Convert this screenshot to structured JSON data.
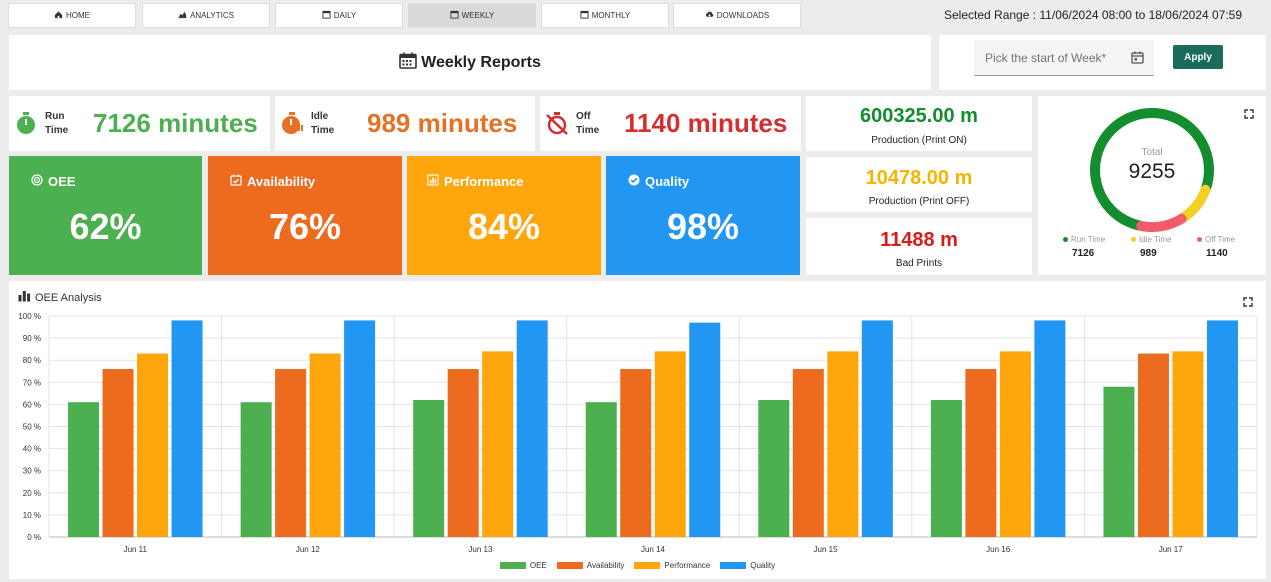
{
  "nav": {
    "items": [
      {
        "label": "HOME",
        "icon": "home-icon"
      },
      {
        "label": "ANALYTICS",
        "icon": "area-chart-icon"
      },
      {
        "label": "DAILY",
        "icon": "calendar-icon"
      },
      {
        "label": "WEEKLY",
        "icon": "calendar-icon",
        "active": true
      },
      {
        "label": "MONTHLY",
        "icon": "calendar-icon"
      },
      {
        "label": "DOWNLOADS",
        "icon": "cloud-download-icon"
      }
    ],
    "selected_range": "Selected Range : 11/06/2024 08:00 to 18/06/2024 07:59"
  },
  "header": {
    "title": "Weekly Reports",
    "picker_placeholder": "Pick the start of Week*",
    "apply_label": "Apply"
  },
  "times": {
    "run": {
      "label1": "Run",
      "label2": "Time",
      "value": "7126 minutes",
      "color": "#4caf50"
    },
    "idle": {
      "label1": "Idle",
      "label2": "Time",
      "value": "989 minutes",
      "color": "#e57125"
    },
    "off": {
      "label1": "Off",
      "label2": "Time",
      "value": "1140 minutes",
      "color": "#d32f2f"
    }
  },
  "kpis": {
    "oee": {
      "label": "OEE",
      "value": "62%",
      "color": "#4caf50"
    },
    "availability": {
      "label": "Availability",
      "value": "76%",
      "color": "#ec6b1f"
    },
    "performance": {
      "label": "Performance",
      "value": "84%",
      "color": "#ffa60d"
    },
    "quality": {
      "label": "Quality",
      "value": "98%",
      "color": "#2196f3"
    }
  },
  "production": {
    "on": {
      "value": "600325.00 m",
      "label": "Production (Print ON)",
      "color": "#138d2d"
    },
    "off": {
      "value": "10478.00 m",
      "label": "Production (Print OFF)",
      "color": "#f4b400"
    },
    "bad": {
      "value": "11488 m",
      "label": "Bad Prints",
      "color": "#d81b1b"
    }
  },
  "donut": {
    "total_label": "Total",
    "total_value": "9255",
    "segments": [
      {
        "label": "Run Time",
        "value": "7126",
        "color": "#138d2d",
        "number": 7126
      },
      {
        "label": "Idle Time",
        "value": "989",
        "color": "#f2d024",
        "number": 989
      },
      {
        "label": "Off Time",
        "value": "1140",
        "color": "#f25c6a",
        "number": 1140
      }
    ]
  },
  "chart_title": "OEE Analysis",
  "chart_data": {
    "type": "bar",
    "categories": [
      "Jun 11",
      "Jun 12",
      "Jun 13",
      "Jun 14",
      "Jun 15",
      "Jun 16",
      "Jun 17"
    ],
    "series": [
      {
        "name": "OEE",
        "color": "#4caf50",
        "values": [
          61,
          61,
          62,
          61,
          62,
          62,
          68
        ]
      },
      {
        "name": "Availability",
        "color": "#ec6b1f",
        "values": [
          76,
          76,
          76,
          76,
          76,
          76,
          83
        ]
      },
      {
        "name": "Performance",
        "color": "#ffa60d",
        "values": [
          83,
          83,
          84,
          84,
          84,
          84,
          84
        ]
      },
      {
        "name": "Quality",
        "color": "#2196f3",
        "values": [
          98,
          98,
          98,
          97,
          98,
          98,
          98
        ]
      }
    ],
    "yticks": [
      "0 %",
      "10 %",
      "20 %",
      "30 %",
      "40 %",
      "50 %",
      "60 %",
      "70 %",
      "80 %",
      "90 %",
      "100 %"
    ],
    "ylim": [
      0,
      100
    ],
    "legend_position": "bottom",
    "grid": true
  }
}
